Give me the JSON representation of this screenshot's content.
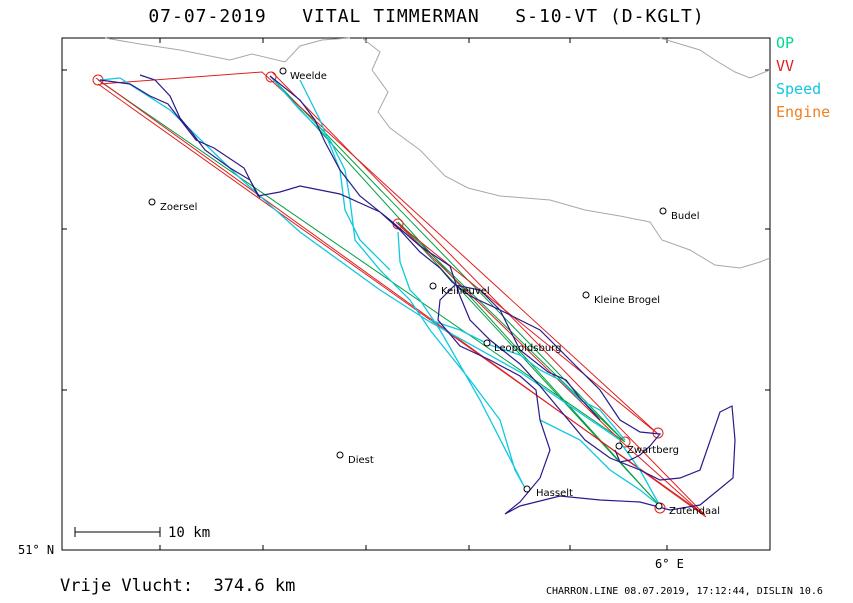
{
  "title": "07-07-2019   VITAL TIMMERMAN   S-10-VT (D-KGLT)",
  "legend": [
    {
      "label": "OP",
      "color": "#00d890"
    },
    {
      "label": "VV",
      "color": "#e02020"
    },
    {
      "label": "Speed",
      "color": "#10c8e0"
    },
    {
      "label": "Engine",
      "color": "#f08020"
    }
  ],
  "axes": {
    "lat_label": "51° N",
    "lon_label": "6° E"
  },
  "scale_label": "10 km",
  "places": [
    {
      "name": "Weelde"
    },
    {
      "name": "Zoersel"
    },
    {
      "name": "Budel"
    },
    {
      "name": "Keiheuvel"
    },
    {
      "name": "Kleine Brogel"
    },
    {
      "name": "Leopoldsburg"
    },
    {
      "name": "Diest"
    },
    {
      "name": "Zwartberg"
    },
    {
      "name": "Hasselt"
    },
    {
      "name": "Zutendaal"
    }
  ],
  "distance": "Vrije Vlucht:  374.6 km",
  "footer": "CHARRON.LINE 08.07.2019, 17:12:44, DISLIN 10.6",
  "colors": {
    "track": "#2a1a8a",
    "speed": "#10c8e0",
    "op": "#00a040",
    "vv": "#e02020",
    "border": "#a0a0a0"
  }
}
